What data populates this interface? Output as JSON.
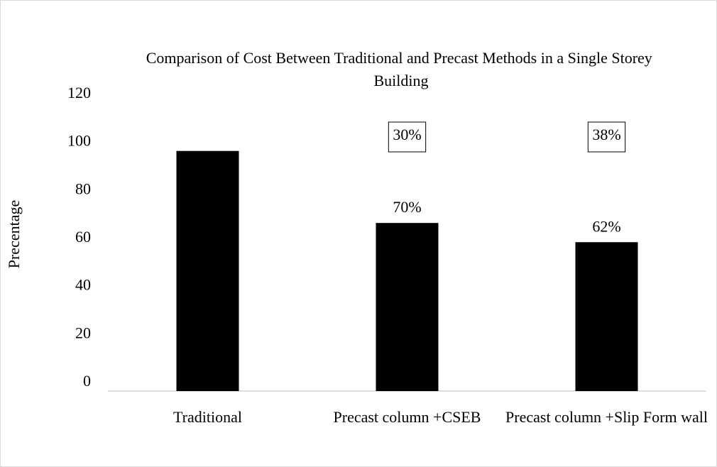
{
  "chart_data": {
    "type": "bar",
    "title": "Comparison of Cost Between Traditional and Precast Methods in a Single Storey Building",
    "y_label": "Precentage",
    "categories": [
      "Traditional",
      "Precast column +CSEB",
      "Precast column +Slip Form wall"
    ],
    "values": [
      100,
      70,
      62
    ],
    "value_labels": [
      null,
      "70%",
      "62%"
    ],
    "annotations": [
      null,
      "30%",
      "38%"
    ],
    "color": "#000000",
    "ylim": [
      0,
      120
    ],
    "yticks": [
      0,
      20,
      40,
      60,
      80,
      100,
      120
    ],
    "grid": false
  }
}
